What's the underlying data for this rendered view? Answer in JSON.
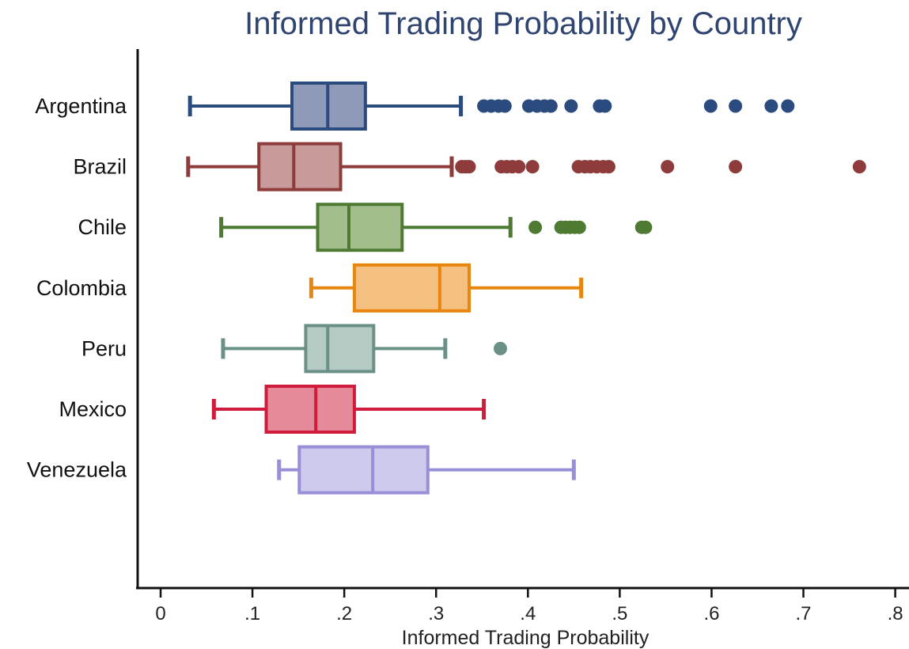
{
  "chart_data": {
    "type": "boxplot",
    "orientation": "horizontal",
    "title": "Informed Trading Probability by Country",
    "xlabel": "Informed Trading Probability",
    "ylabel": "",
    "xlim": [
      -0.025,
      0.815
    ],
    "xticks": [
      0,
      0.1,
      0.2,
      0.3,
      0.4,
      0.5,
      0.6,
      0.7,
      0.8
    ],
    "xtick_labels": [
      "0",
      ".1",
      ".2",
      ".3",
      ".4",
      ".5",
      ".6",
      ".7",
      ".8"
    ],
    "grid": false,
    "legend": "none",
    "categories": [
      "Argentina",
      "Brazil",
      "Chile",
      "Colombia",
      "Peru",
      "Mexico",
      "Venezuela"
    ],
    "series": [
      {
        "name": "Argentina",
        "color": "#2b4a7e",
        "fill": "#8f9ab8",
        "whisker_low": 0.032,
        "q1": 0.143,
        "median": 0.182,
        "q3": 0.223,
        "whisker_high": 0.327,
        "outliers": [
          0.352,
          0.36,
          0.368,
          0.375,
          0.401,
          0.41,
          0.418,
          0.425,
          0.447,
          0.478,
          0.484,
          0.599,
          0.626,
          0.665,
          0.683
        ]
      },
      {
        "name": "Brazil",
        "color": "#8e3b3b",
        "fill": "#c89a9a",
        "whisker_low": 0.03,
        "q1": 0.107,
        "median": 0.145,
        "q3": 0.196,
        "whisker_high": 0.317,
        "outliers": [
          0.328,
          0.332,
          0.336,
          0.371,
          0.377,
          0.383,
          0.39,
          0.405,
          0.455,
          0.462,
          0.468,
          0.475,
          0.482,
          0.488,
          0.552,
          0.626,
          0.761
        ]
      },
      {
        "name": "Chile",
        "color": "#4f7a32",
        "fill": "#a3bd8d",
        "whisker_low": 0.066,
        "q1": 0.171,
        "median": 0.205,
        "q3": 0.263,
        "whisker_high": 0.381,
        "outliers": [
          0.408,
          0.436,
          0.441,
          0.446,
          0.451,
          0.456,
          0.524,
          0.528
        ]
      },
      {
        "name": "Colombia",
        "color": "#e8850c",
        "fill": "#f4c07f",
        "whisker_low": 0.164,
        "q1": 0.211,
        "median": 0.304,
        "q3": 0.336,
        "whisker_high": 0.458,
        "outliers": []
      },
      {
        "name": "Peru",
        "color": "#6b9088",
        "fill": "#b4cac3",
        "whisker_low": 0.068,
        "q1": 0.158,
        "median": 0.182,
        "q3": 0.232,
        "whisker_high": 0.31,
        "outliers": [
          0.37
        ]
      },
      {
        "name": "Mexico",
        "color": "#cf1c3c",
        "fill": "#e58a98",
        "whisker_low": 0.058,
        "q1": 0.115,
        "median": 0.169,
        "q3": 0.211,
        "whisker_high": 0.352,
        "outliers": []
      },
      {
        "name": "Venezuela",
        "color": "#9790d8",
        "fill": "#cdcaee",
        "whisker_low": 0.129,
        "q1": 0.151,
        "median": 0.231,
        "q3": 0.291,
        "whisker_high": 0.45,
        "outliers": []
      }
    ]
  }
}
